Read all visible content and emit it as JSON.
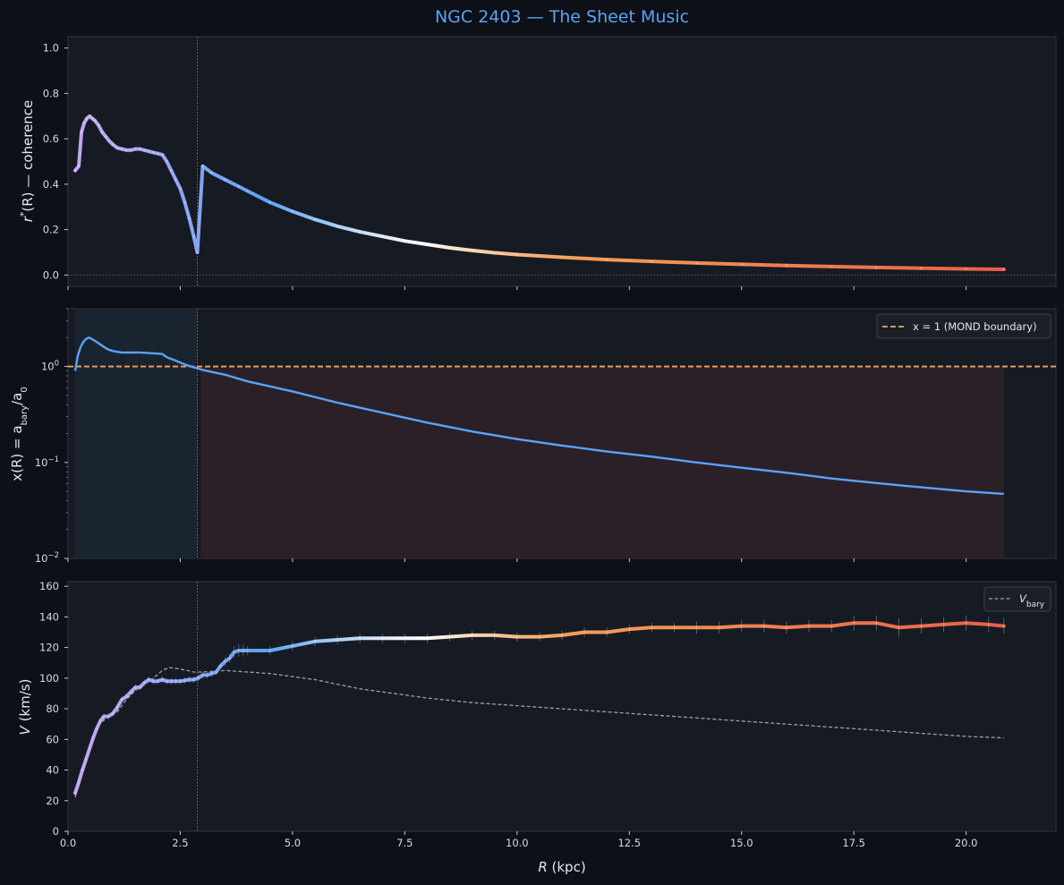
{
  "title": "NGC 2403 — The Sheet Music",
  "colors": {
    "background": "#0d1017",
    "panel": "#161b23",
    "accent_blue": "#5aa3f5",
    "orange": "#f5a05a",
    "red": "#e65a48",
    "violet": "#b9a2f2",
    "vbary_gray": "#9aa0aa",
    "inner_shade": "#1b2633",
    "outer_shade": "#2b1f28"
  },
  "chart_data": [
    {
      "type": "line",
      "name": "coherence",
      "ylabel_main": "r",
      "ylabel_sup": "*",
      "ylabel_rest": "(R) — coherence",
      "xlim": [
        0,
        22
      ],
      "ylim": [
        -0.05,
        1.05
      ],
      "yticks": [
        "0.0",
        "0.2",
        "0.4",
        "0.6",
        "0.8",
        "1.0"
      ],
      "ytick_values": [
        0,
        0.2,
        0.4,
        0.6,
        0.8,
        1.0
      ],
      "transition_R": 2.88,
      "series": [
        {
          "x": [
            0.16,
            0.24,
            0.3,
            0.36,
            0.42,
            0.48,
            0.54,
            0.6,
            0.68,
            0.76,
            0.84,
            0.92,
            1.0,
            1.1,
            1.2,
            1.3,
            1.4,
            1.5,
            1.6,
            1.7,
            1.8,
            1.9,
            2.0,
            2.1,
            2.2,
            2.3,
            2.4,
            2.5,
            2.6,
            2.7,
            2.8,
            2.88,
            3.0,
            3.2,
            3.5,
            3.8,
            4.0,
            4.5,
            5.0,
            5.5,
            6.0,
            6.5,
            7.0,
            7.5,
            8.0,
            8.5,
            9.0,
            9.5,
            10.0,
            11.0,
            12.0,
            13.0,
            14.0,
            15.0,
            16.0,
            17.0,
            18.0,
            19.0,
            20.0,
            20.84
          ],
          "y": [
            0.46,
            0.48,
            0.63,
            0.67,
            0.69,
            0.7,
            0.69,
            0.68,
            0.66,
            0.63,
            0.61,
            0.59,
            0.575,
            0.56,
            0.555,
            0.55,
            0.55,
            0.555,
            0.555,
            0.55,
            0.545,
            0.54,
            0.535,
            0.53,
            0.5,
            0.46,
            0.42,
            0.38,
            0.32,
            0.25,
            0.17,
            0.1,
            0.48,
            0.45,
            0.42,
            0.39,
            0.37,
            0.32,
            0.28,
            0.245,
            0.215,
            0.19,
            0.17,
            0.15,
            0.135,
            0.12,
            0.108,
            0.098,
            0.09,
            0.078,
            0.068,
            0.06,
            0.053,
            0.047,
            0.042,
            0.037,
            0.033,
            0.03,
            0.027,
            0.025
          ]
        }
      ]
    },
    {
      "type": "line",
      "name": "acceleration-ratio",
      "scale": "log",
      "ylabel_pre": "x(R) = a",
      "ylabel_sub": "bary",
      "ylabel_post": "/a",
      "ylabel_sub2": "0",
      "xlim": [
        0,
        22
      ],
      "ylim": [
        0.01,
        4.0
      ],
      "yticks": [
        {
          "base": "10",
          "exp": "0",
          "value": 1
        },
        {
          "base": "10",
          "exp": "−1",
          "value": 0.1
        },
        {
          "base": "10",
          "exp": "−2",
          "value": 0.01
        }
      ],
      "legend": {
        "text": "x = 1 (MOND boundary)",
        "placement": "top-right"
      },
      "boundary_y": 1,
      "inner_region_R": [
        0.16,
        2.88
      ],
      "outer_region_R": [
        2.95,
        20.84
      ],
      "series": [
        {
          "x": [
            0.16,
            0.22,
            0.28,
            0.34,
            0.4,
            0.46,
            0.52,
            0.6,
            0.7,
            0.8,
            0.9,
            1.0,
            1.1,
            1.2,
            1.4,
            1.6,
            1.8,
            2.0,
            2.1,
            2.2,
            2.4,
            2.6,
            2.8,
            3.0,
            3.5,
            4.0,
            5.0,
            6.0,
            7.0,
            8.0,
            9.0,
            10.0,
            11.0,
            12.0,
            13.0,
            14.0,
            15.0,
            16.0,
            17.0,
            18.0,
            19.0,
            20.0,
            20.84
          ],
          "y": [
            0.9,
            1.3,
            1.6,
            1.8,
            1.93,
            2.0,
            1.95,
            1.85,
            1.72,
            1.6,
            1.5,
            1.45,
            1.42,
            1.4,
            1.4,
            1.4,
            1.38,
            1.36,
            1.35,
            1.25,
            1.15,
            1.05,
            0.98,
            0.92,
            0.82,
            0.7,
            0.55,
            0.42,
            0.33,
            0.26,
            0.21,
            0.175,
            0.15,
            0.13,
            0.115,
            0.1,
            0.088,
            0.078,
            0.068,
            0.061,
            0.055,
            0.05,
            0.047
          ]
        }
      ]
    },
    {
      "type": "line",
      "name": "rotation-curve",
      "ylabel_pre": "V",
      "ylabel_rest": " (km/s)",
      "xlabel_pre": "R",
      "xlabel_rest": " (kpc)",
      "xlim": [
        0,
        22
      ],
      "ylim": [
        0,
        163
      ],
      "xticks": [
        "0.0",
        "2.5",
        "5.0",
        "7.5",
        "10.0",
        "12.5",
        "15.0",
        "17.5",
        "20.0"
      ],
      "xtick_values": [
        0,
        2.5,
        5,
        7.5,
        10,
        12.5,
        15,
        17.5,
        20
      ],
      "yticks": [
        "0",
        "20",
        "40",
        "60",
        "80",
        "100",
        "120",
        "140",
        "160"
      ],
      "ytick_values": [
        0,
        20,
        40,
        60,
        80,
        100,
        120,
        140,
        160
      ],
      "legend": {
        "text_pre": "V",
        "text_sub": "bary",
        "placement": "top-right"
      },
      "series": [
        {
          "name": "V_obs",
          "x": [
            0.16,
            0.24,
            0.32,
            0.4,
            0.48,
            0.56,
            0.64,
            0.72,
            0.8,
            0.9,
            1.0,
            1.1,
            1.2,
            1.3,
            1.4,
            1.5,
            1.6,
            1.7,
            1.8,
            1.9,
            2.0,
            2.1,
            2.2,
            2.3,
            2.4,
            2.5,
            2.6,
            2.7,
            2.8,
            2.9,
            3.0,
            3.1,
            3.2,
            3.3,
            3.4,
            3.5,
            3.6,
            3.7,
            3.8,
            3.9,
            4.0,
            4.5,
            5.0,
            5.5,
            6.0,
            6.5,
            7.0,
            7.5,
            8.0,
            8.5,
            9.0,
            9.5,
            10.0,
            10.5,
            11.0,
            11.5,
            12.0,
            12.5,
            13.0,
            13.5,
            14.0,
            14.5,
            15.0,
            15.5,
            16.0,
            16.5,
            17.0,
            17.5,
            18.0,
            18.5,
            19.0,
            19.5,
            20.0,
            20.5,
            20.84
          ],
          "y": [
            25,
            32,
            40,
            47,
            54,
            61,
            67,
            72,
            75,
            75,
            77,
            81,
            86,
            88,
            91,
            94,
            94,
            97,
            99,
            98,
            98,
            99,
            98,
            98,
            98,
            98,
            98.5,
            99,
            99,
            100,
            102,
            102,
            103,
            104,
            108,
            111,
            113,
            117,
            118,
            118,
            118,
            118,
            121,
            124,
            125,
            126,
            126,
            126,
            126,
            127,
            128,
            128,
            127,
            127,
            128,
            130,
            130,
            132,
            133,
            133,
            133,
            133,
            134,
            134,
            133,
            134,
            134,
            136,
            136,
            133,
            134,
            135,
            136,
            135,
            134
          ],
          "err": [
            2,
            2,
            2,
            2,
            2,
            2,
            2,
            2,
            2,
            2,
            2,
            2,
            2,
            2,
            2,
            2,
            2,
            2,
            2,
            2,
            2,
            2,
            2,
            2,
            2,
            2,
            2,
            2,
            2,
            2,
            2,
            2,
            2,
            2,
            2,
            3,
            3,
            4,
            4,
            4,
            3,
            3,
            3,
            3,
            3,
            3,
            3,
            3,
            3,
            3,
            3,
            3,
            3,
            3,
            3,
            3,
            3,
            3,
            3,
            3,
            4,
            4,
            4,
            4,
            4,
            4,
            4,
            5,
            5,
            6,
            5,
            5,
            5,
            5,
            5
          ]
        },
        {
          "name": "V_bary",
          "x": [
            0.16,
            0.3,
            0.5,
            0.7,
            0.9,
            1.1,
            1.3,
            1.5,
            1.7,
            1.9,
            2.1,
            2.25,
            2.5,
            2.8,
            3.0,
            3.5,
            4.0,
            4.5,
            5.0,
            5.5,
            6.0,
            6.5,
            7.0,
            8.0,
            9.0,
            10.0,
            11.0,
            12.0,
            13.0,
            14.0,
            15.0,
            16.0,
            17.0,
            18.0,
            19.0,
            20.0,
            20.84
          ],
          "y": [
            22,
            38,
            58,
            70,
            75,
            78,
            86,
            92,
            96,
            100,
            105,
            107,
            106,
            104,
            104,
            105,
            104,
            103,
            101,
            99,
            96,
            93,
            91,
            87,
            84,
            82,
            80,
            78,
            76,
            74,
            72,
            70,
            68,
            66,
            64,
            62,
            61
          ]
        }
      ]
    }
  ]
}
